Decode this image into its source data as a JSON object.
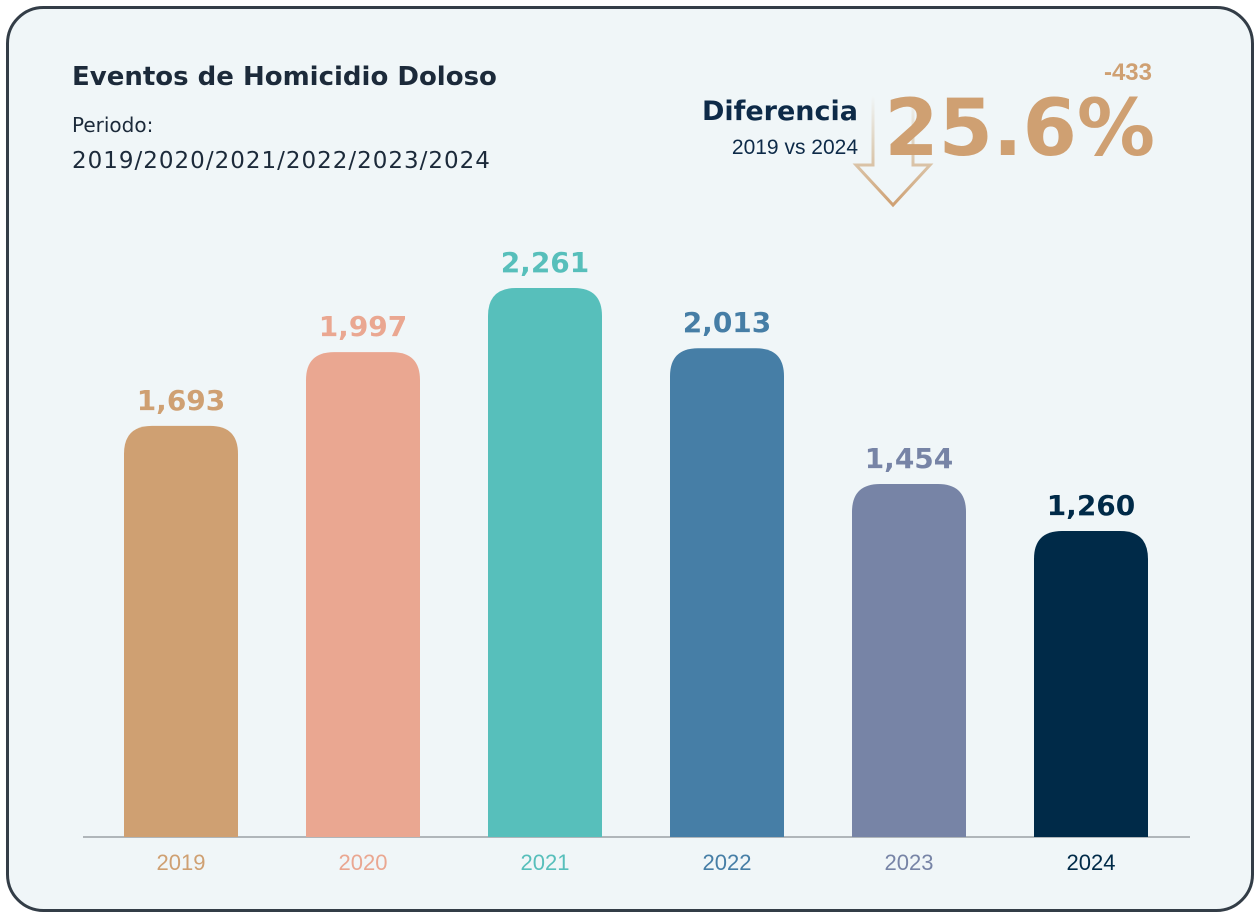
{
  "chart_data": {
    "type": "bar",
    "title": "Eventos de Homicidio Doloso",
    "subtitle": "Periodo:",
    "period": "2019/2020/2021/2022/2023/2024",
    "annotations": {
      "label": "Diferencia",
      "comparison": "2019 vs 2024",
      "change": "-433",
      "change_percent": "25.6%"
    },
    "categories": [
      "2019",
      "2020",
      "2021",
      "2022",
      "2023",
      "2024"
    ],
    "values": [
      1693,
      1997,
      2261,
      2013,
      1454,
      1260
    ],
    "value_labels": [
      "1,693",
      "1,997",
      "2,261",
      "2,013",
      "1,454",
      "1,260"
    ],
    "colors": [
      "#cfa072",
      "#eaa791",
      "#57bfbb",
      "#467ea6",
      "#7784a6",
      "#002a48"
    ]
  }
}
